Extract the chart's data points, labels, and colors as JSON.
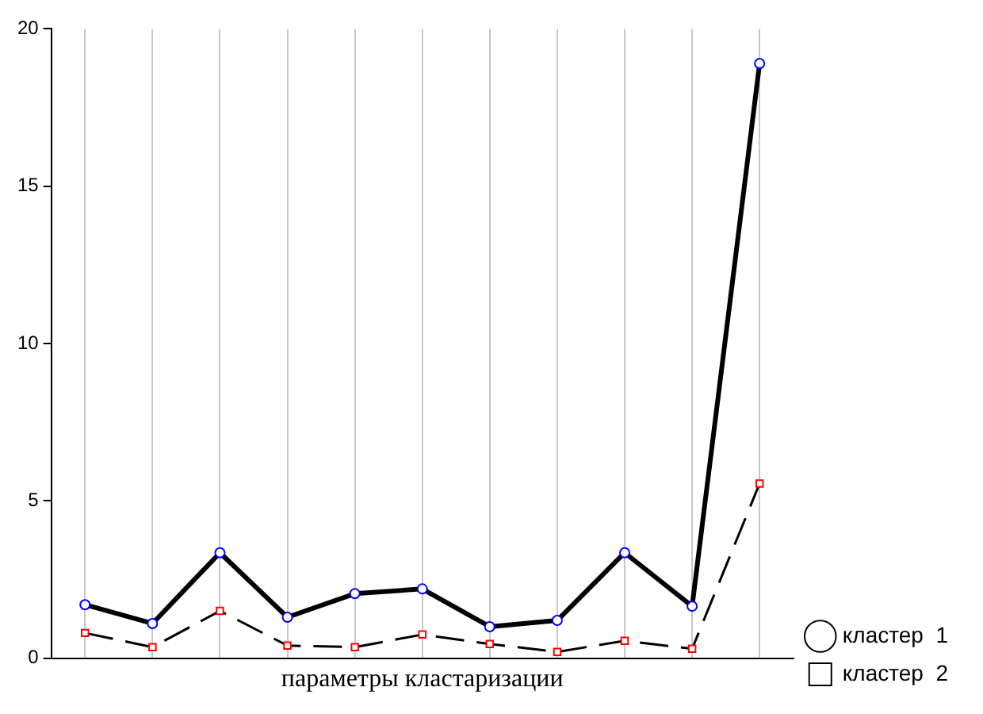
{
  "chart_data": {
    "type": "line",
    "xlabel": "параметры кластаризации",
    "categories": [
      null,
      null,
      null,
      null,
      null,
      null,
      null,
      null,
      null,
      null,
      null
    ],
    "ylim": [
      0,
      20
    ],
    "yticks": [
      0,
      5,
      10,
      15,
      20
    ],
    "tick_labels": "y",
    "grid": "x",
    "legend": "bottom right",
    "series": [
      {
        "name": "кластер  1",
        "color": "#000000",
        "colors": [
          "#0000ff",
          "#0000ff",
          "#0000ff",
          "#0000ff",
          "#0000ff",
          "#0000ff",
          "#0000ff",
          "#0000ff",
          "#0000ff",
          "#0000ff",
          "#0000ff"
        ],
        "marker": "circle",
        "line_style": "solid",
        "values": [
          1.7,
          1.1,
          3.35,
          1.3,
          2.05,
          2.2,
          1.0,
          1.2,
          3.35,
          1.65,
          18.9
        ]
      },
      {
        "name": "кластер  2",
        "color": "#000000",
        "colors": [
          "#ff0000",
          "#ff0000",
          "#ff0000",
          "#ff0000",
          "#ff0000",
          "#ff0000",
          "#ff0000",
          "#ff0000",
          "#ff0000",
          "#ff0000",
          "#ff0000"
        ],
        "marker": "square",
        "line_style": "dashed",
        "values": [
          0.8,
          0.35,
          1.5,
          0.4,
          0.35,
          0.75,
          0.45,
          0.2,
          0.55,
          0.3,
          5.55
        ]
      }
    ]
  }
}
